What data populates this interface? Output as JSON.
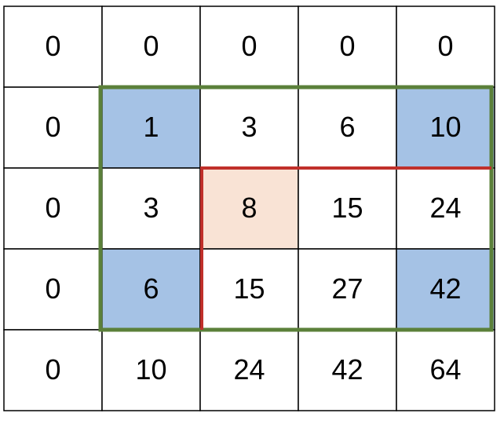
{
  "table": {
    "rows": [
      [
        0,
        0,
        0,
        0,
        0
      ],
      [
        0,
        1,
        3,
        6,
        10
      ],
      [
        0,
        3,
        8,
        15,
        24
      ],
      [
        0,
        6,
        15,
        27,
        42
      ],
      [
        0,
        10,
        24,
        42,
        64
      ]
    ]
  }
}
